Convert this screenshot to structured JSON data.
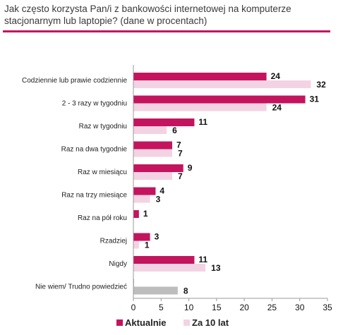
{
  "chart_data": {
    "type": "bar",
    "orientation": "horizontal",
    "title": "Jak często korzysta Pan/i z bankowości internetowej  na komputerze stacjonarnym lub laptopie? (dane w procentach)",
    "categories": [
      "Codziennie lub prawie codziennie",
      "2 - 3 razy w tygodniu",
      "Raz w tygodniu",
      "Raz na dwa tygodnie",
      "Raz w miesiącu",
      "Raz na trzy miesiące",
      "Raz na pół roku",
      "Rzadziej",
      "Nigdy",
      "Nie wiem/ Trudno powiedzieć"
    ],
    "series": [
      {
        "name": "Aktualnie",
        "values": [
          24,
          31,
          11,
          7,
          9,
          4,
          1,
          3,
          11,
          0
        ],
        "color": "#c4145e"
      },
      {
        "name": "Za 10 lat",
        "values": [
          32,
          24,
          6,
          7,
          7,
          3,
          null,
          1,
          13,
          8
        ],
        "color": "#f3d3e3"
      }
    ],
    "value_labels": {
      "Aktualnie": [
        "24",
        "31",
        "11",
        "7",
        "9",
        "4",
        "1",
        "3",
        "11",
        ""
      ],
      "Za 10 lat": [
        "32",
        "24",
        "6",
        "7",
        "7",
        "3",
        "",
        "1",
        "13",
        "8"
      ]
    },
    "highlight_colors": {
      "last_row_za10lat": "#bdbdbd"
    },
    "xlim": [
      0,
      35
    ],
    "xticks": [
      "0",
      "5",
      "10",
      "15",
      "20",
      "25",
      "30",
      "35"
    ],
    "legend_position": "bottom",
    "grid": false
  }
}
